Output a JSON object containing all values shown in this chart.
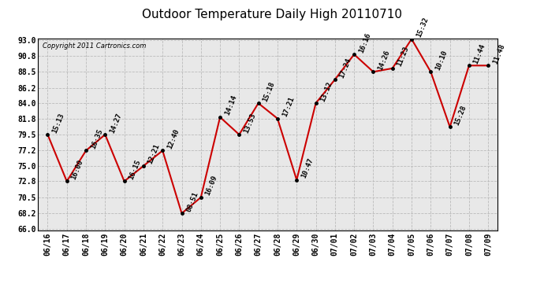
{
  "title": "Outdoor Temperature Daily High 20110710",
  "copyright": "Copyright 2011 Cartronics.com",
  "x_labels": [
    "06/16",
    "06/17",
    "06/18",
    "06/19",
    "06/20",
    "06/21",
    "06/22",
    "06/23",
    "06/24",
    "06/25",
    "06/26",
    "06/27",
    "06/28",
    "06/29",
    "06/30",
    "07/01",
    "07/02",
    "07/03",
    "07/04",
    "07/05",
    "07/06",
    "07/07",
    "07/08",
    "07/09"
  ],
  "y_values": [
    79.5,
    72.8,
    77.2,
    79.5,
    72.8,
    75.0,
    77.2,
    68.2,
    70.5,
    82.0,
    79.5,
    84.0,
    81.8,
    73.0,
    84.0,
    87.4,
    91.0,
    88.5,
    89.0,
    93.2,
    88.5,
    80.6,
    89.4,
    89.4
  ],
  "point_labels": [
    "15:13",
    "16:00",
    "16:35",
    "14:27",
    "16:15",
    "12:21",
    "12:40",
    "08:51",
    "16:09",
    "14:14",
    "13:53",
    "15:18",
    "17:21",
    "10:47",
    "13:12",
    "17:24",
    "16:16",
    "14:26",
    "11:23",
    "15:32",
    "10:10",
    "15:28",
    "11:44",
    "11:48"
  ],
  "ylim_min": 66.0,
  "ylim_max": 93.0,
  "ytick_values": [
    66.0,
    68.2,
    70.5,
    72.8,
    75.0,
    77.2,
    79.5,
    81.8,
    84.0,
    86.2,
    88.5,
    90.8,
    93.0
  ],
  "line_color": "#cc0000",
  "marker_color": "#990000",
  "dot_color": "black",
  "background_color": "#ffffff",
  "plot_bg_color": "#e8e8e8",
  "grid_color": "#bbbbbb",
  "title_fontsize": 11,
  "tick_fontsize": 7,
  "point_label_fontsize": 6.5,
  "copyright_fontsize": 6
}
